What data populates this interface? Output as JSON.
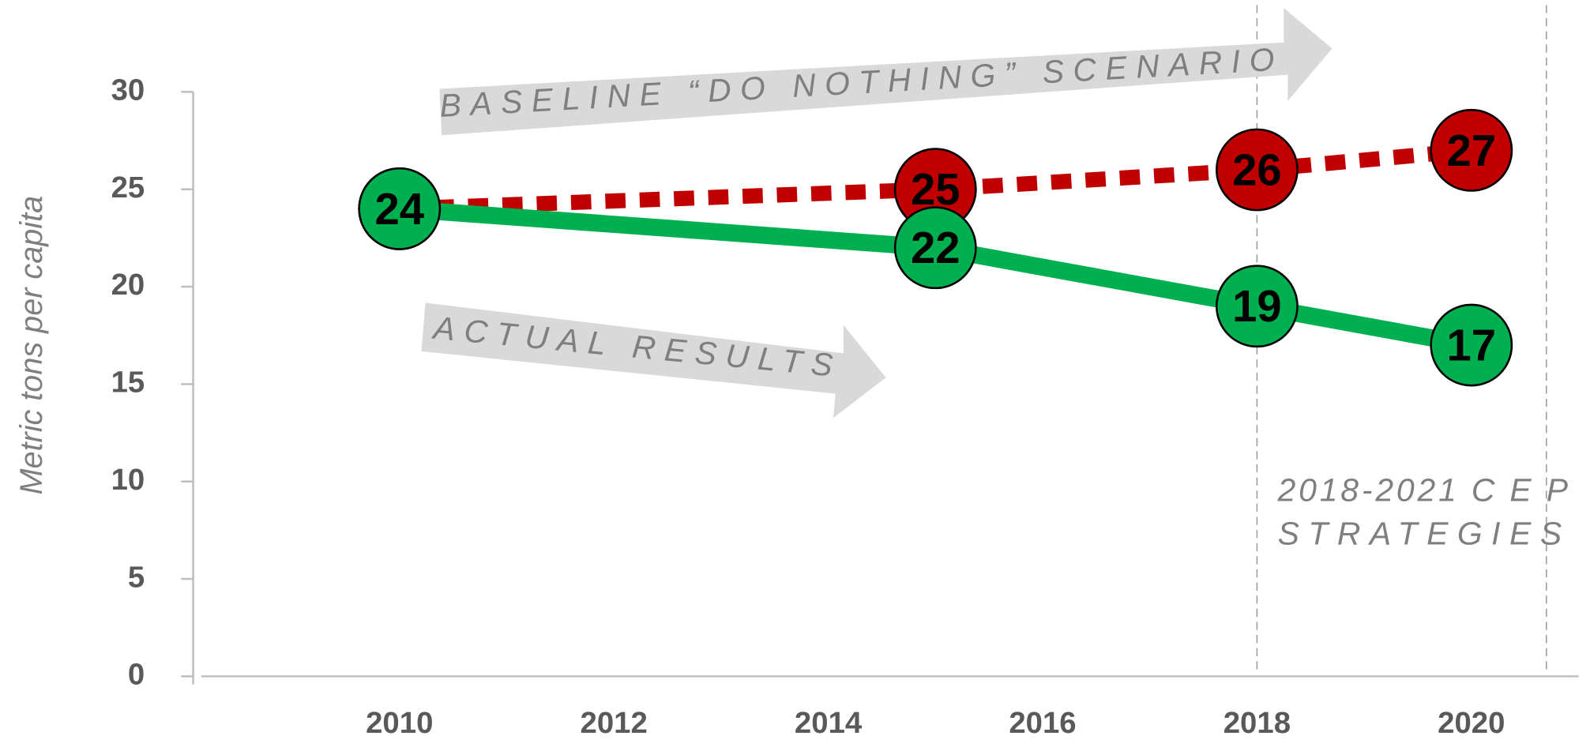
{
  "chart_data": {
    "type": "line",
    "y_label": "Metric tons per capita",
    "annotations": [
      "BASELINE “DO NOTHING” SCENARIO",
      "ACTUAL RESULTS",
      "2018-2021 C E P",
      "STRATEGIES"
    ],
    "xlim": [
      2008,
      2021
    ],
    "xticks": [
      2010,
      2012,
      2014,
      2016,
      2018,
      2020
    ],
    "ylim": [
      0,
      30
    ],
    "yticks": [
      0,
      5,
      10,
      15,
      20,
      25,
      30
    ],
    "vlines": [
      2018,
      2020.7
    ],
    "series": [
      {
        "color": "#c00000",
        "style": "dotted",
        "x": [
          2010,
          2015,
          2018,
          2020
        ],
        "values": [
          24,
          25,
          26,
          27
        ]
      },
      {
        "color": "#00b050",
        "style": "solid",
        "x": [
          2010,
          2015,
          2018,
          2020
        ],
        "values": [
          24,
          22,
          19,
          17
        ]
      }
    ]
  }
}
